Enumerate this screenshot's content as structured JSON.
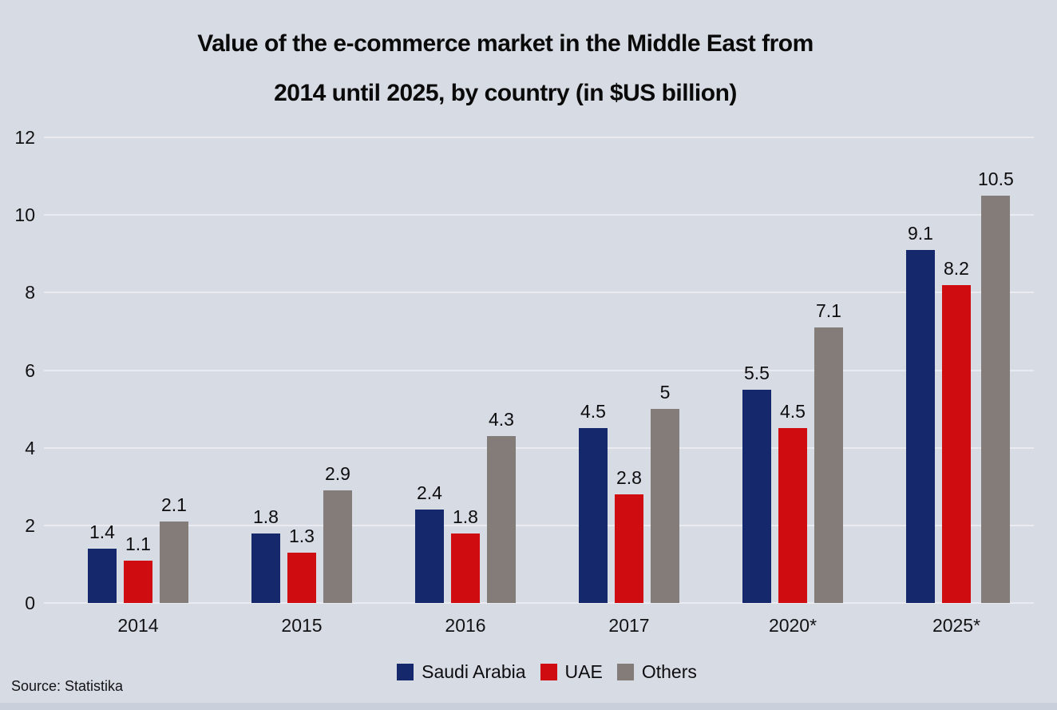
{
  "title": {
    "line1": "Value of the e-commerce market in the Middle East from",
    "line2": "2014 until 2025, by country (in $US billion)"
  },
  "source": "Source: Statistika",
  "colors": {
    "background": "#d7dbe4",
    "saudi_arabia": "#14286b",
    "uae": "#cf0d11",
    "others": "#847c79",
    "gridline": "rgba(255,255,255,0.45)",
    "bottom_strip": "#c9cfdb",
    "text": "#0b0b0c"
  },
  "chart_data": {
    "type": "bar",
    "title": "Value of the e-commerce market in the Middle East from 2014 until 2025, by country (in $US billion)",
    "categories": [
      "2014",
      "2015",
      "2016",
      "2017",
      "2020*",
      "2025*"
    ],
    "series": [
      {
        "name": "Saudi Arabia",
        "color": "#14286b",
        "values": [
          1.4,
          1.8,
          2.4,
          4.5,
          5.5,
          9.1
        ]
      },
      {
        "name": "UAE",
        "color": "#cf0d11",
        "values": [
          1.1,
          1.3,
          1.8,
          2.8,
          4.5,
          8.2
        ]
      },
      {
        "name": "Others",
        "color": "#847c79",
        "values": [
          2.1,
          2.9,
          4.3,
          5,
          7.1,
          10.5
        ]
      }
    ],
    "xlabel": "",
    "ylabel": "",
    "ylim": [
      0,
      12
    ],
    "y_ticks": [
      0,
      2,
      4,
      6,
      8,
      10,
      12
    ],
    "grid": "horizontal-faint",
    "legend_position": "bottom",
    "data_labels": true
  }
}
